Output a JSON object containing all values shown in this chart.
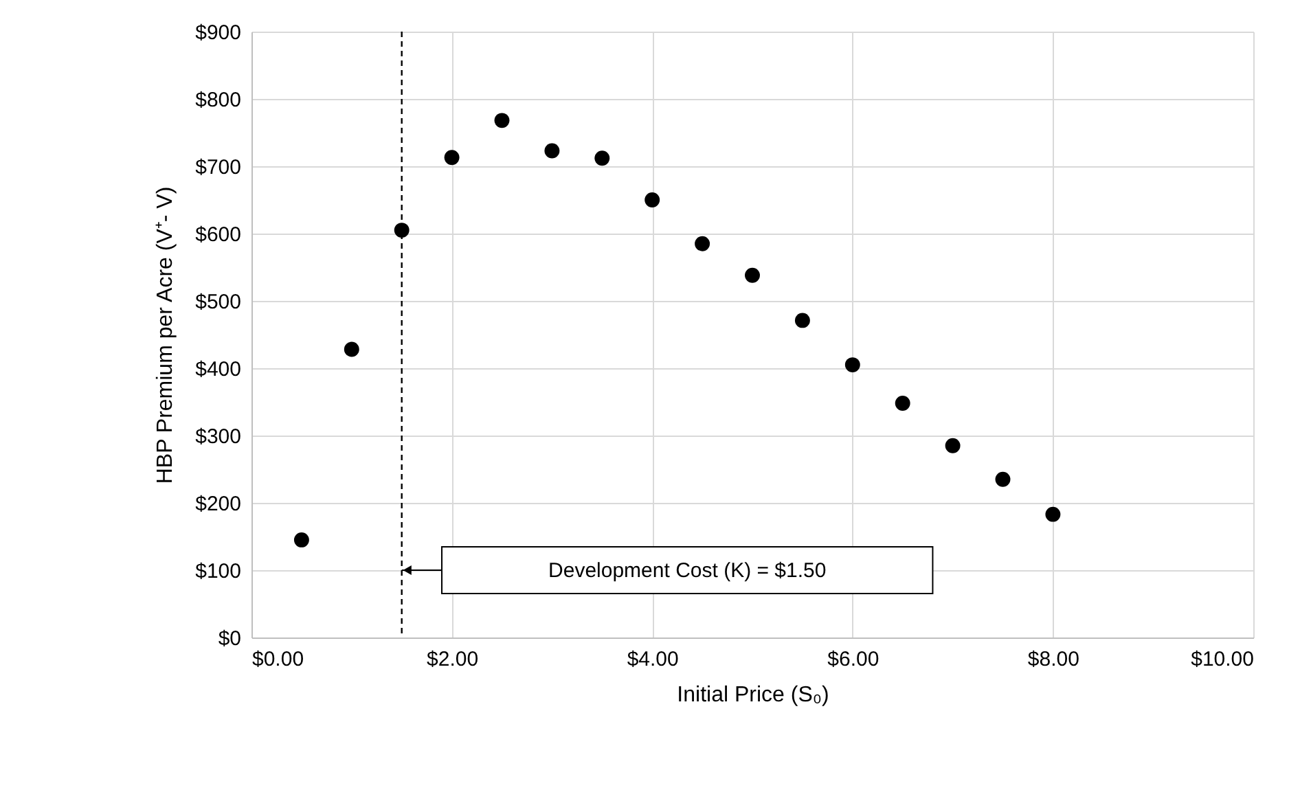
{
  "chart_data": {
    "type": "scatter",
    "xlabel": "Initial Price (S₀)",
    "ylabel": "HBP Premium per Acre (V⁺- V)",
    "x": [
      0.5,
      1.0,
      1.5,
      2.0,
      2.5,
      3.0,
      3.5,
      4.0,
      4.5,
      5.0,
      5.5,
      6.0,
      6.5,
      7.0,
      7.5,
      8.0
    ],
    "series": [
      {
        "color": "#000000",
        "values": [
          145,
          428,
          605,
          713,
          768,
          723,
          712,
          650,
          585,
          538,
          471,
          405,
          348,
          285,
          235,
          183
        ]
      }
    ],
    "xlim": [
      0,
      10
    ],
    "xticks": [
      {
        "value": 0,
        "label": "$0.00"
      },
      {
        "value": 2,
        "label": "$2.00"
      },
      {
        "value": 4,
        "label": "$4.00"
      },
      {
        "value": 6,
        "label": "$6.00"
      },
      {
        "value": 8,
        "label": "$8.00"
      },
      {
        "value": 10,
        "label": "$10.00"
      }
    ],
    "ylim": [
      0,
      900
    ],
    "yticks": [
      {
        "value": 0,
        "label": "$0"
      },
      {
        "value": 100,
        "label": "$100"
      },
      {
        "value": 200,
        "label": "$200"
      },
      {
        "value": 300,
        "label": "$300"
      },
      {
        "value": 400,
        "label": "$400"
      },
      {
        "value": 500,
        "label": "$500"
      },
      {
        "value": 600,
        "label": "$600"
      },
      {
        "value": 700,
        "label": "$700"
      },
      {
        "value": 800,
        "label": "$800"
      },
      {
        "value": 900,
        "label": "$900"
      }
    ],
    "ref_lines": [
      {
        "axis": "x",
        "value": 1.5,
        "label": "Development Cost (K) = $1.50",
        "color": "#000000",
        "line_style": "dashed"
      }
    ],
    "grid": true,
    "marker": "circle"
  }
}
